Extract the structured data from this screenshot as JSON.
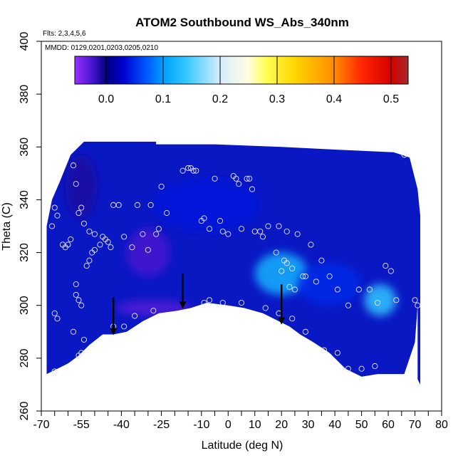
{
  "chart_data": {
    "type": "heatmap",
    "title": "ATOM2 Southbound WS_Abs_340nm",
    "flights_label": "Flts: 2,3,4,5,6",
    "dates_label": "MMDD: 0129,0201,0203,0205,0210",
    "xlabel": "Latitude (deg N)",
    "ylabel": "Theta (C)",
    "xlim": [
      -70,
      80
    ],
    "ylim": [
      260,
      400
    ],
    "x_ticks": [
      -70,
      -55,
      -40,
      -25,
      -10,
      0,
      10,
      20,
      30,
      40,
      50,
      60,
      70,
      80
    ],
    "x_minor_ticks": [
      -65,
      -60,
      -50,
      -45,
      -35,
      -30,
      -20,
      -15,
      -5,
      5,
      15,
      25,
      35,
      45,
      55,
      65,
      75
    ],
    "y_ticks": [
      260,
      280,
      300,
      320,
      340,
      360,
      380,
      400
    ],
    "colorbar": {
      "range": [
        -0.055,
        0.53
      ],
      "ticks": [
        0.0,
        0.1,
        0.2,
        0.3,
        0.4,
        0.5
      ],
      "tick_labels": [
        "0.0",
        "0.1",
        "0.2",
        "0.3",
        "0.4",
        "0.5"
      ],
      "stops": [
        {
          "v": -0.055,
          "color": "#9b30ff"
        },
        {
          "v": -0.02,
          "color": "#3a12c8"
        },
        {
          "v": 0.0,
          "color": "#00007a"
        },
        {
          "v": 0.03,
          "color": "#0000d0"
        },
        {
          "v": 0.07,
          "color": "#0055ff"
        },
        {
          "v": 0.1,
          "color": "#009fff"
        },
        {
          "v": 0.14,
          "color": "#33c7ff"
        },
        {
          "v": 0.2,
          "color": "#d8ecff"
        },
        {
          "v": 0.25,
          "color": "#fffde0"
        },
        {
          "v": 0.28,
          "color": "#ffff55"
        },
        {
          "v": 0.33,
          "color": "#ffd700"
        },
        {
          "v": 0.4,
          "color": "#ff8c00"
        },
        {
          "v": 0.45,
          "color": "#ff2400"
        },
        {
          "v": 0.5,
          "color": "#d40000"
        },
        {
          "v": 0.53,
          "color": "#a52a2a"
        }
      ]
    },
    "field": {
      "background_color": "#0a18c4",
      "top_boundary": [
        [
          -68,
          330
        ],
        [
          -66,
          340
        ],
        [
          -63,
          347
        ],
        [
          -61,
          352
        ],
        [
          -59,
          357
        ],
        [
          -57,
          359
        ],
        [
          -55,
          361
        ],
        [
          -54,
          362
        ],
        [
          -40,
          362
        ],
        [
          -27,
          362
        ],
        [
          -27,
          361
        ],
        [
          -5,
          361
        ],
        [
          20,
          360
        ],
        [
          40,
          359
        ],
        [
          62,
          358
        ],
        [
          65,
          357
        ],
        [
          68,
          356
        ],
        [
          71,
          344
        ],
        [
          72,
          334
        ]
      ],
      "bottom_boundary": [
        [
          72,
          270
        ],
        [
          71,
          272
        ],
        [
          71,
          300
        ],
        [
          70,
          286
        ],
        [
          66,
          274
        ],
        [
          56,
          274
        ],
        [
          50,
          273
        ],
        [
          44,
          276
        ],
        [
          38,
          282
        ],
        [
          32,
          286
        ],
        [
          27,
          289
        ],
        [
          23,
          292
        ],
        [
          19,
          294
        ],
        [
          13,
          297
        ],
        [
          6,
          299
        ],
        [
          0,
          300
        ],
        [
          -8,
          301
        ],
        [
          -14,
          299
        ],
        [
          -19,
          298
        ],
        [
          -26,
          297
        ],
        [
          -32,
          294
        ],
        [
          -38,
          290
        ],
        [
          -43,
          289
        ],
        [
          -47,
          289
        ],
        [
          -52,
          285
        ],
        [
          -56,
          281
        ],
        [
          -60,
          278
        ],
        [
          -64,
          276
        ],
        [
          -68,
          274
        ]
      ],
      "features": [
        {
          "x": 20,
          "y": 312,
          "rx": 10,
          "ry": 8,
          "value": 0.12
        },
        {
          "x": 57,
          "y": 302,
          "rx": 6,
          "ry": 6,
          "value": 0.14
        },
        {
          "x": 38,
          "y": 308,
          "rx": 12,
          "ry": 8,
          "value": 0.05
        },
        {
          "x": -30,
          "y": 320,
          "rx": 8,
          "ry": 9,
          "value": -0.025
        },
        {
          "x": -28,
          "y": 299,
          "rx": 14,
          "ry": 3,
          "value": -0.03
        },
        {
          "x": -55,
          "y": 345,
          "rx": 6,
          "ry": 12,
          "value": -0.01
        },
        {
          "x": -8,
          "y": 338,
          "rx": 20,
          "ry": 10,
          "value": 0.04
        }
      ]
    },
    "sample_points": [
      [
        -66,
        330
      ],
      [
        -65,
        337
      ],
      [
        -64,
        334
      ],
      [
        -65,
        297
      ],
      [
        -64,
        295
      ],
      [
        -65,
        275
      ],
      [
        -62,
        323
      ],
      [
        -61,
        322
      ],
      [
        -60,
        323
      ],
      [
        -59,
        325
      ],
      [
        -58,
        353
      ],
      [
        -57,
        346
      ],
      [
        -56,
        335
      ],
      [
        -55,
        337
      ],
      [
        -54,
        331
      ],
      [
        -52,
        328
      ],
      [
        -50,
        327
      ],
      [
        -57,
        308
      ],
      [
        -57,
        304
      ],
      [
        -56,
        302
      ],
      [
        -55,
        300
      ],
      [
        -58,
        290
      ],
      [
        -54,
        287
      ],
      [
        -55,
        282
      ],
      [
        -56,
        281
      ],
      [
        -53,
        315
      ],
      [
        -52,
        317
      ],
      [
        -51,
        320
      ],
      [
        -50,
        321
      ],
      [
        -48,
        323
      ],
      [
        -47,
        326
      ],
      [
        -46,
        325
      ],
      [
        -45,
        324
      ],
      [
        -44,
        322
      ],
      [
        -43,
        338
      ],
      [
        -41,
        338
      ],
      [
        -39,
        326
      ],
      [
        -36,
        322
      ],
      [
        -34,
        338
      ],
      [
        -32,
        327
      ],
      [
        -30,
        321
      ],
      [
        -29,
        338
      ],
      [
        -27,
        327
      ],
      [
        -26,
        329
      ],
      [
        -25,
        345
      ],
      [
        -23,
        335
      ],
      [
        -43,
        292
      ],
      [
        -39,
        292
      ],
      [
        -35,
        296
      ],
      [
        -28,
        298
      ],
      [
        -17,
        351
      ],
      [
        -15,
        352
      ],
      [
        -14,
        352
      ],
      [
        -13,
        351
      ],
      [
        -12,
        351
      ],
      [
        -10,
        332
      ],
      [
        -9,
        333
      ],
      [
        -7,
        329
      ],
      [
        -5,
        348
      ],
      [
        -3,
        332
      ],
      [
        -2,
        328
      ],
      [
        0,
        327
      ],
      [
        -9,
        301
      ],
      [
        -7,
        302
      ],
      [
        -2,
        301
      ],
      [
        5,
        301
      ],
      [
        2,
        349
      ],
      [
        3,
        348
      ],
      [
        4,
        346
      ],
      [
        7,
        348
      ],
      [
        8,
        348
      ],
      [
        9,
        344
      ],
      [
        5,
        329
      ],
      [
        10,
        328
      ],
      [
        12,
        328
      ],
      [
        13,
        326
      ],
      [
        15,
        330
      ],
      [
        19,
        330
      ],
      [
        22,
        328
      ],
      [
        26,
        327
      ],
      [
        31,
        323
      ],
      [
        35,
        317
      ],
      [
        38,
        311
      ],
      [
        33,
        309
      ],
      [
        29,
        311
      ],
      [
        24,
        314
      ],
      [
        22,
        316
      ],
      [
        21,
        317
      ],
      [
        20,
        313
      ],
      [
        18,
        320
      ],
      [
        23,
        307
      ],
      [
        25,
        306
      ],
      [
        28,
        311
      ],
      [
        41,
        306
      ],
      [
        45,
        300
      ],
      [
        49,
        306
      ],
      [
        53,
        306
      ],
      [
        56,
        301
      ],
      [
        59,
        315
      ],
      [
        61,
        313
      ],
      [
        63,
        302
      ],
      [
        14,
        299
      ],
      [
        19,
        297
      ],
      [
        24,
        295
      ],
      [
        29,
        290
      ],
      [
        36,
        283
      ],
      [
        41,
        282
      ],
      [
        45,
        276
      ],
      [
        50,
        276
      ],
      [
        55,
        277
      ],
      [
        66,
        357
      ],
      [
        70,
        302
      ],
      [
        71,
        300
      ]
    ],
    "arrows": [
      {
        "x": -43,
        "y_from": 303,
        "y_to": 289
      },
      {
        "x": -17,
        "y_from": 312,
        "y_to": 299
      },
      {
        "x": 20,
        "y_from": 308,
        "y_to": 293
      }
    ]
  }
}
